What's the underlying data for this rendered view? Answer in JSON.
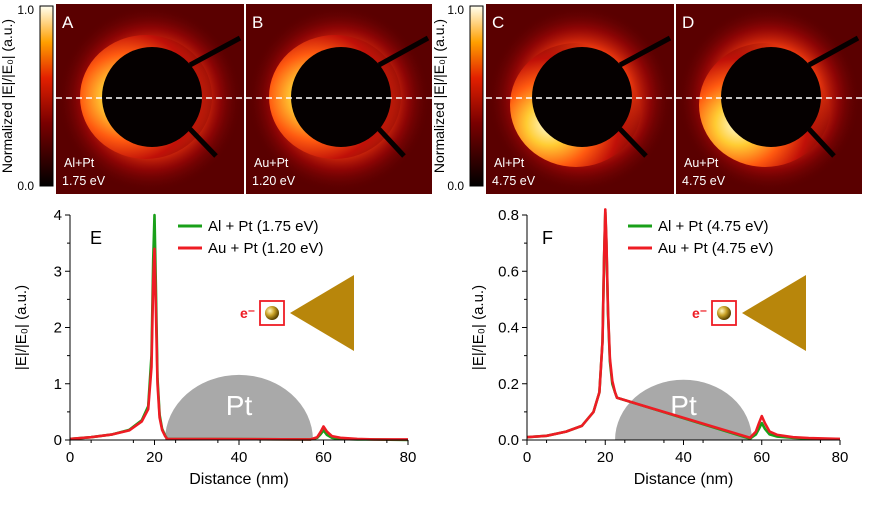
{
  "colorbar": {
    "label": "Normalized |E|/|E₀| (a.u.)",
    "ticks": [
      "1.0",
      "0.0"
    ]
  },
  "maps": [
    {
      "letter": "A",
      "material": "Al+Pt",
      "energy": "1.75 eV",
      "glow": "left"
    },
    {
      "letter": "B",
      "material": "Au+Pt",
      "energy": "1.20 eV",
      "glow": "left"
    },
    {
      "letter": "C",
      "material": "Al+Pt",
      "energy": "4.75 eV",
      "glow": "left-bottom"
    },
    {
      "letter": "D",
      "material": "Au+Pt",
      "energy": "4.75 eV",
      "glow": "left-bottom"
    }
  ],
  "colors": {
    "green": "#1aa01a",
    "red": "#ee1c24",
    "pt": "#a9a9a9",
    "gold": "#b8860b",
    "electron": "#ee1c24"
  },
  "inset": {
    "particle_label": "Pt",
    "electron_label": "e⁻"
  },
  "chart_data": [
    {
      "type": "line",
      "panel": "E",
      "xlabel": "Distance (nm)",
      "ylabel": "|E|/|E₀| (a.u.)",
      "xlim": [
        0,
        80
      ],
      "ylim": [
        0,
        4
      ],
      "xticks": [
        0,
        20,
        40,
        60,
        80
      ],
      "yticks": [
        0,
        1,
        2,
        3,
        4
      ],
      "ytick_labels": [
        "0",
        "1",
        "2",
        "3",
        "4"
      ],
      "legend": "top-left",
      "grid": false,
      "series": [
        {
          "name": "Al + Pt (1.75 eV)",
          "color": "#1aa01a",
          "x": [
            0,
            5,
            10,
            14,
            17,
            18.5,
            19.3,
            19.7,
            20,
            20.3,
            20.7,
            21.2,
            21.8,
            22.5,
            23,
            57,
            58.5,
            59.3,
            60,
            60.8,
            62,
            64,
            68,
            72,
            80
          ],
          "y": [
            0.02,
            0.05,
            0.1,
            0.18,
            0.35,
            0.6,
            1.5,
            3.2,
            4.0,
            2.8,
            1.1,
            0.45,
            0.2,
            0.08,
            0.02,
            0.01,
            0.04,
            0.1,
            0.17,
            0.09,
            0.04,
            0.02,
            0.01,
            0.01,
            0.0
          ]
        },
        {
          "name": "Au + Pt (1.20 eV)",
          "color": "#ee1c24",
          "x": [
            0,
            5,
            10,
            14,
            17,
            18.5,
            19.3,
            19.7,
            20,
            20.3,
            20.7,
            21.2,
            21.8,
            22.5,
            23,
            57,
            58.5,
            59.3,
            60,
            60.8,
            62,
            64,
            68,
            72,
            80
          ],
          "y": [
            0.02,
            0.05,
            0.1,
            0.17,
            0.33,
            0.55,
            1.3,
            2.8,
            3.4,
            2.4,
            1.0,
            0.4,
            0.18,
            0.07,
            0.02,
            0.01,
            0.05,
            0.14,
            0.24,
            0.15,
            0.07,
            0.04,
            0.02,
            0.01,
            0.01
          ]
        }
      ]
    },
    {
      "type": "line",
      "panel": "F",
      "xlabel": "Distance (nm)",
      "ylabel": "|E|/|E₀| (a.u.)",
      "xlim": [
        0,
        80
      ],
      "ylim": [
        0,
        0.8
      ],
      "xticks": [
        0,
        20,
        40,
        60,
        80
      ],
      "yticks": [
        0,
        0.2,
        0.4,
        0.6,
        0.8
      ],
      "ytick_labels": [
        "0.0",
        "0.2",
        "0.4",
        "0.6",
        "0.8"
      ],
      "legend": "top-right",
      "grid": false,
      "series": [
        {
          "name": "Al + Pt (4.75 eV)",
          "color": "#1aa01a",
          "x": [
            0,
            5,
            10,
            14,
            17,
            18.5,
            19.3,
            19.7,
            20,
            20.3,
            20.7,
            21.2,
            21.8,
            22.5,
            23,
            57,
            58.5,
            59.3,
            60,
            60.8,
            62,
            64,
            68,
            72,
            80
          ],
          "y": [
            0.01,
            0.015,
            0.03,
            0.05,
            0.1,
            0.17,
            0.35,
            0.65,
            0.81,
            0.7,
            0.45,
            0.28,
            0.2,
            0.17,
            0.15,
            0.005,
            0.02,
            0.04,
            0.06,
            0.04,
            0.02,
            0.012,
            0.008,
            0.005,
            0.003
          ]
        },
        {
          "name": "Au + Pt (4.75 eV)",
          "color": "#ee1c24",
          "x": [
            0,
            5,
            10,
            14,
            17,
            18.5,
            19.3,
            19.7,
            20,
            20.3,
            20.7,
            21.2,
            21.8,
            22.5,
            23,
            57,
            58.5,
            59.3,
            60,
            60.8,
            62,
            64,
            68,
            72,
            80
          ],
          "y": [
            0.01,
            0.015,
            0.03,
            0.05,
            0.1,
            0.17,
            0.35,
            0.65,
            0.82,
            0.71,
            0.46,
            0.29,
            0.21,
            0.17,
            0.15,
            0.008,
            0.03,
            0.06,
            0.085,
            0.06,
            0.03,
            0.018,
            0.01,
            0.007,
            0.004
          ]
        }
      ]
    }
  ]
}
